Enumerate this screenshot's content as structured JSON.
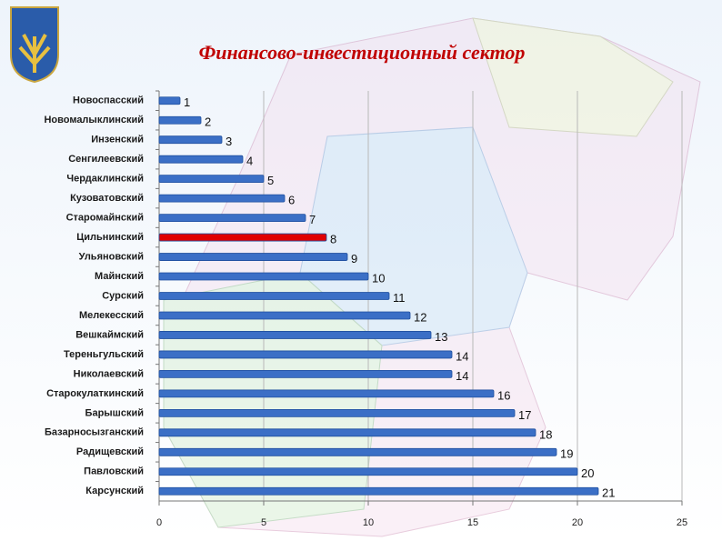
{
  "chart_data": {
    "type": "bar",
    "orientation": "horizontal",
    "title": "Финансово-инвестиционный сектор",
    "categories": [
      "Новоспасский",
      "Новомалыклинский",
      "Инзенский",
      "Сенгилеевский",
      "Чердаклинский",
      "Кузоватовский",
      "Старомайнский",
      "Цильнинский",
      "Ульяновский",
      "Майнский",
      "Сурский",
      "Мелекесский",
      "Вешкаймский",
      "Тереньгульский",
      "Николаевский",
      "Старокулаткинский",
      "Барышский",
      "Базарносызганский",
      "Радищевский",
      "Павловский",
      "Карсунский"
    ],
    "values": [
      1,
      2,
      3,
      4,
      5,
      6,
      7,
      8,
      9,
      10,
      11,
      12,
      13,
      14,
      14,
      16,
      17,
      18,
      19,
      20,
      21
    ],
    "colors": [
      "#3b6fc6",
      "#3b6fc6",
      "#3b6fc6",
      "#3b6fc6",
      "#3b6fc6",
      "#3b6fc6",
      "#3b6fc6",
      "#e00000",
      "#3b6fc6",
      "#3b6fc6",
      "#3b6fc6",
      "#3b6fc6",
      "#3b6fc6",
      "#3b6fc6",
      "#3b6fc6",
      "#3b6fc6",
      "#3b6fc6",
      "#3b6fc6",
      "#3b6fc6",
      "#3b6fc6",
      "#3b6fc6"
    ],
    "xlim": [
      0,
      25
    ],
    "xticks": [
      0,
      5,
      10,
      15,
      20,
      25
    ],
    "grid": true
  }
}
